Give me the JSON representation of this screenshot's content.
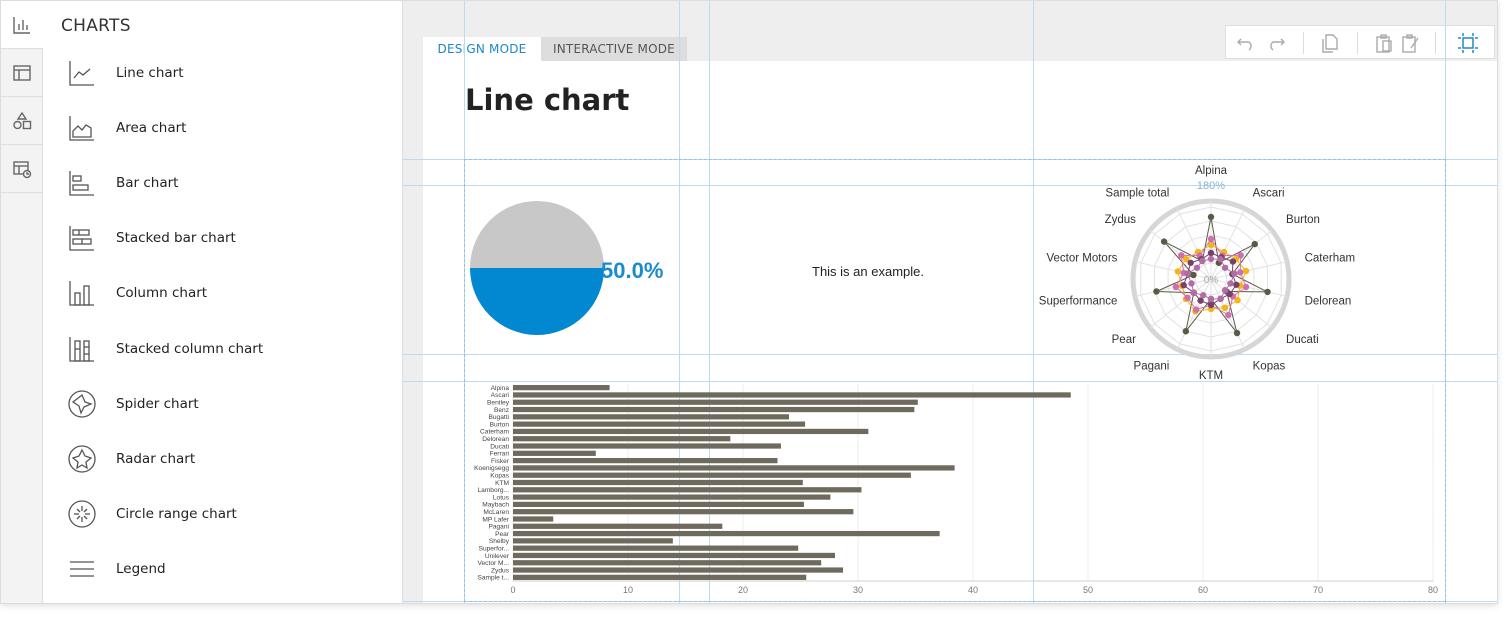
{
  "panel": {
    "title": "CHARTS",
    "items": [
      {
        "label": "Line chart",
        "icon": "line-chart-icon"
      },
      {
        "label": "Area chart",
        "icon": "area-chart-icon"
      },
      {
        "label": "Bar chart",
        "icon": "bar-chart-icon"
      },
      {
        "label": "Stacked bar chart",
        "icon": "stacked-bar-chart-icon"
      },
      {
        "label": "Column chart",
        "icon": "column-chart-icon"
      },
      {
        "label": "Stacked column chart",
        "icon": "stacked-column-chart-icon"
      },
      {
        "label": "Spider chart",
        "icon": "spider-chart-icon"
      },
      {
        "label": "Radar chart",
        "icon": "radar-chart-icon"
      },
      {
        "label": "Circle range chart",
        "icon": "circle-range-chart-icon"
      },
      {
        "label": "Legend",
        "icon": "legend-icon"
      }
    ]
  },
  "rail": {
    "icons": [
      "charts-icon",
      "table-icon",
      "shapes-icon",
      "table-settings-icon"
    ]
  },
  "tabs": {
    "design": "DESIGN MODE",
    "interactive": "INTERACTIVE MODE"
  },
  "toolbar": {
    "icons": [
      "undo-icon",
      "redo-icon",
      "copy-icon",
      "paste-icon",
      "paste-format-icon",
      "select-area-icon"
    ]
  },
  "canvas": {
    "title": "Line chart",
    "example_text": "This is an example.",
    "pie_label": "50.0%"
  },
  "colors": {
    "accent": "#1d87c8",
    "pie_fill": "#0288d1",
    "pie_empty": "#c8c8c8",
    "bar": "#6e6b5e",
    "guide": "#b9dcf2"
  },
  "chart_data": [
    {
      "type": "pie",
      "values": [
        50,
        50
      ],
      "label": "50.0%"
    },
    {
      "type": "radar",
      "categories": [
        "Alpina",
        "Ascari",
        "Burton",
        "Caterham",
        "Delorean",
        "Ducati",
        "Kopas",
        "KTM",
        "Pagani",
        "Pear",
        "Superformance",
        "Vector Motors",
        "Zydus",
        "Sample total"
      ],
      "outer_label": "180%",
      "inner_label": "0%"
    },
    {
      "type": "bar",
      "categories": [
        "Alpina",
        "Ascari",
        "Bentley",
        "Benz",
        "Bugatti",
        "Burton",
        "Caterham",
        "Delorean",
        "Ducati",
        "Ferrari",
        "Fisker",
        "Koenigsegg",
        "Kopas",
        "KTM",
        "Lamborg...",
        "Lotus",
        "Maybach",
        "McLaren",
        "MP Lafer",
        "Pagani",
        "Pear",
        "Shelby",
        "Superfor...",
        "Unilever",
        "Vector M...",
        "Zydus",
        "Sample t..."
      ],
      "values": [
        8.4,
        48.5,
        35.2,
        34.9,
        24,
        25.4,
        30.9,
        18.9,
        23.3,
        7.2,
        23,
        38.4,
        34.6,
        25.2,
        30.3,
        27.6,
        25.3,
        29.6,
        3.5,
        18.2,
        37.1,
        13.9,
        24.8,
        28,
        26.8,
        28.7,
        25.5
      ],
      "xlim": [
        0,
        80
      ],
      "xticks": [
        "0",
        "10",
        "20",
        "30",
        "40",
        "50",
        "60",
        "70",
        "80"
      ]
    }
  ]
}
